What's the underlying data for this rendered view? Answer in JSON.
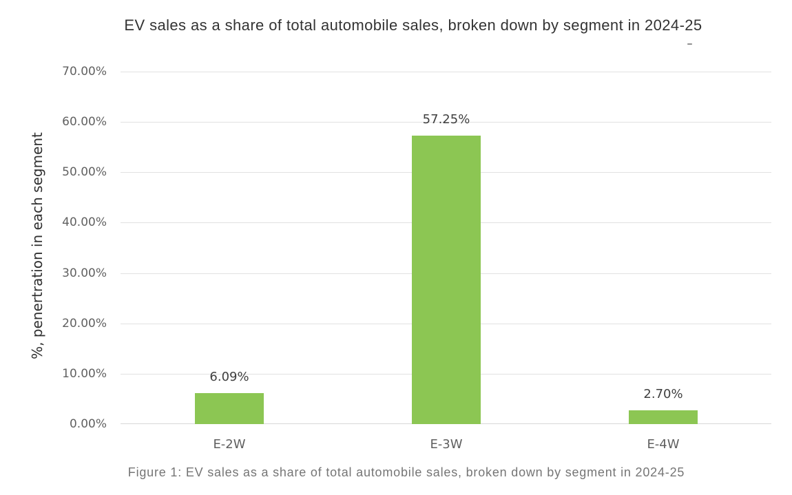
{
  "title": "EV sales as a share of total automobile sales, broken down by segment in 2024-25",
  "dash_mark": "-",
  "caption": "Figure 1: EV sales as a share of total automobile sales, broken down by segment in 2024-25",
  "colors": {
    "background": "#FFFFFF",
    "bar": "#8CC653",
    "gridline": "#E1E1E1",
    "axis_line": "#D7D7D7",
    "title_text": "#333333",
    "tick_text": "#616161",
    "category_text": "#5F5F5F",
    "data_label_text": "#3F3F3F",
    "caption_text": "#757575",
    "y_axis_title_text": "#2F2F2F"
  },
  "chart_data": {
    "type": "bar",
    "title": "EV sales as a share of total automobile sales, broken down by segment in 2024-25",
    "categories": [
      "E-2W",
      "E-3W",
      "E-4W"
    ],
    "values": [
      6.09,
      57.25,
      2.7
    ],
    "data_labels": [
      "6.09%",
      "57.25%",
      "2.70%"
    ],
    "xlabel": "",
    "ylabel": "%, penertration in each segment",
    "ylim": [
      0,
      70
    ],
    "y_tick_step": 10,
    "y_tick_labels": [
      "0.00%",
      "10.00%",
      "20.00%",
      "30.00%",
      "40.00%",
      "50.00%",
      "60.00%",
      "70.00%"
    ],
    "grid": true,
    "legend": false,
    "bar_color": "#8CC653"
  }
}
